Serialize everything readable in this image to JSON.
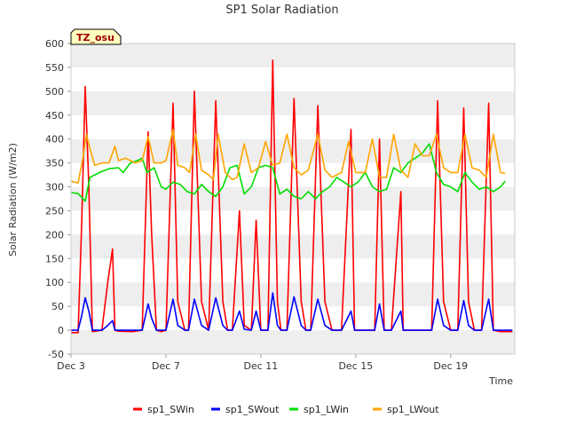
{
  "chart_data": {
    "type": "line",
    "title": "SP1 Solar Radiation",
    "xlabel": "Time",
    "ylabel": "Solar Radiation (W/m2)",
    "ylim": [
      -50,
      600
    ],
    "yticks": [
      -50,
      0,
      50,
      100,
      150,
      200,
      250,
      300,
      350,
      400,
      450,
      500,
      550,
      600
    ],
    "xlim": [
      3,
      21.7
    ],
    "xticks": [
      {
        "x": 3,
        "label": "Dec 3"
      },
      {
        "x": 7,
        "label": "Dec 7"
      },
      {
        "x": 11,
        "label": "Dec 11"
      },
      {
        "x": 15,
        "label": "Dec 15"
      },
      {
        "x": 19,
        "label": "Dec 19"
      }
    ],
    "x_unit": "day of December",
    "grid": "horizontal bands",
    "legend_position": "bottom",
    "badge": "TZ_osu",
    "series": [
      {
        "name": "sp1_SWin",
        "color": "#ff0000",
        "x": [
          3.0,
          3.3,
          3.45,
          3.6,
          3.75,
          3.9,
          4.3,
          4.55,
          4.75,
          4.85,
          5.0,
          5.6,
          6.0,
          6.25,
          6.4,
          6.6,
          6.8,
          7.0,
          7.3,
          7.5,
          7.8,
          7.95,
          8.2,
          8.5,
          8.8,
          9.1,
          9.4,
          9.6,
          9.8,
          10.1,
          10.3,
          10.6,
          10.8,
          11.0,
          11.3,
          11.5,
          11.7,
          11.85,
          12.1,
          12.4,
          12.7,
          12.9,
          13.1,
          13.4,
          13.7,
          14.0,
          14.4,
          14.8,
          14.95,
          15.1,
          15.4,
          15.8,
          16.0,
          16.2,
          16.5,
          16.9,
          17.0,
          17.15,
          17.3,
          17.6,
          17.9,
          18.2,
          18.45,
          18.7,
          19.0,
          19.3,
          19.55,
          19.75,
          20.0,
          20.3,
          20.6,
          20.8,
          21.1,
          21.3,
          21.6
        ],
        "values": [
          -5,
          -5,
          220,
          510,
          300,
          -3,
          0,
          100,
          170,
          0,
          -2,
          -3,
          0,
          415,
          200,
          0,
          -3,
          0,
          475,
          60,
          0,
          0,
          500,
          60,
          0,
          480,
          60,
          0,
          0,
          250,
          10,
          0,
          230,
          0,
          0,
          565,
          60,
          0,
          0,
          485,
          60,
          0,
          0,
          470,
          60,
          0,
          0,
          420,
          0,
          0,
          0,
          0,
          400,
          0,
          0,
          290,
          0,
          0,
          0,
          0,
          0,
          0,
          480,
          60,
          0,
          0,
          465,
          60,
          0,
          0,
          475,
          0,
          -3,
          -3,
          -3
        ]
      },
      {
        "name": "sp1_SWout",
        "color": "#0000ff",
        "x": [
          3.0,
          3.3,
          3.45,
          3.6,
          3.75,
          3.9,
          4.3,
          4.55,
          4.75,
          4.85,
          5.0,
          5.6,
          6.0,
          6.25,
          6.4,
          6.6,
          6.8,
          7.0,
          7.3,
          7.5,
          7.8,
          7.95,
          8.2,
          8.5,
          8.8,
          9.1,
          9.4,
          9.6,
          9.8,
          10.1,
          10.3,
          10.6,
          10.8,
          11.0,
          11.3,
          11.5,
          11.7,
          11.85,
          12.1,
          12.4,
          12.7,
          12.9,
          13.1,
          13.4,
          13.7,
          14.0,
          14.4,
          14.8,
          14.95,
          15.1,
          15.4,
          15.8,
          16.0,
          16.2,
          16.5,
          16.9,
          17.0,
          17.15,
          17.3,
          17.6,
          17.9,
          18.2,
          18.45,
          18.7,
          19.0,
          19.3,
          19.55,
          19.75,
          20.0,
          20.3,
          20.6,
          20.8,
          21.1,
          21.3,
          21.6
        ],
        "values": [
          0,
          0,
          30,
          68,
          40,
          0,
          0,
          10,
          20,
          0,
          0,
          0,
          0,
          55,
          25,
          0,
          0,
          0,
          65,
          10,
          0,
          0,
          65,
          10,
          0,
          68,
          10,
          0,
          0,
          40,
          2,
          0,
          40,
          0,
          0,
          78,
          10,
          0,
          0,
          70,
          10,
          0,
          0,
          65,
          10,
          0,
          0,
          40,
          0,
          0,
          0,
          0,
          55,
          0,
          0,
          40,
          0,
          0,
          0,
          0,
          0,
          0,
          65,
          10,
          0,
          0,
          62,
          10,
          0,
          0,
          65,
          0,
          0,
          0,
          0
        ]
      },
      {
        "name": "sp1_LWin",
        "color": "#00dd00",
        "x": [
          3.0,
          3.3,
          3.6,
          3.8,
          4.2,
          4.6,
          5.0,
          5.2,
          5.5,
          5.8,
          6.0,
          6.2,
          6.5,
          6.8,
          7.0,
          7.3,
          7.6,
          7.9,
          8.2,
          8.5,
          8.8,
          9.1,
          9.4,
          9.7,
          10.0,
          10.3,
          10.6,
          10.9,
          11.2,
          11.5,
          11.8,
          12.1,
          12.4,
          12.7,
          13.0,
          13.3,
          13.6,
          13.9,
          14.2,
          14.5,
          14.8,
          15.1,
          15.4,
          15.7,
          16.0,
          16.3,
          16.6,
          16.9,
          17.2,
          17.5,
          17.8,
          18.1,
          18.4,
          18.7,
          19.0,
          19.3,
          19.6,
          19.9,
          20.2,
          20.5,
          20.8,
          21.1,
          21.3
        ],
        "values": [
          288,
          286,
          270,
          320,
          330,
          338,
          340,
          330,
          350,
          355,
          360,
          330,
          340,
          300,
          295,
          310,
          305,
          290,
          285,
          305,
          290,
          280,
          300,
          340,
          345,
          285,
          300,
          340,
          345,
          340,
          285,
          295,
          280,
          275,
          290,
          275,
          290,
          300,
          320,
          310,
          300,
          310,
          330,
          300,
          290,
          295,
          340,
          330,
          350,
          360,
          370,
          390,
          330,
          305,
          300,
          290,
          330,
          310,
          295,
          300,
          290,
          300,
          312
        ]
      },
      {
        "name": "sp1_LWout",
        "color": "#ffa500",
        "x": [
          3.0,
          3.3,
          3.5,
          3.65,
          3.8,
          4.0,
          4.3,
          4.6,
          4.85,
          5.0,
          5.3,
          5.7,
          6.0,
          6.25,
          6.5,
          6.8,
          7.0,
          7.3,
          7.5,
          7.8,
          8.0,
          8.25,
          8.5,
          8.8,
          9.0,
          9.2,
          9.5,
          9.8,
          10.0,
          10.3,
          10.6,
          10.9,
          11.2,
          11.5,
          11.8,
          12.1,
          12.4,
          12.7,
          13.0,
          13.4,
          13.7,
          14.0,
          14.4,
          14.7,
          15.0,
          15.4,
          15.7,
          16.0,
          16.3,
          16.6,
          16.9,
          17.2,
          17.5,
          17.8,
          18.1,
          18.4,
          18.7,
          19.0,
          19.3,
          19.6,
          19.9,
          20.2,
          20.5,
          20.8,
          21.1,
          21.3
        ],
        "values": [
          312,
          308,
          360,
          410,
          380,
          345,
          350,
          350,
          385,
          355,
          360,
          350,
          355,
          405,
          350,
          350,
          355,
          420,
          345,
          340,
          330,
          410,
          335,
          325,
          315,
          410,
          330,
          315,
          320,
          390,
          330,
          340,
          395,
          345,
          350,
          410,
          340,
          325,
          335,
          410,
          335,
          320,
          330,
          395,
          330,
          330,
          400,
          320,
          320,
          410,
          335,
          320,
          390,
          365,
          365,
          410,
          340,
          330,
          330,
          410,
          340,
          335,
          320,
          410,
          330,
          328
        ]
      }
    ]
  }
}
